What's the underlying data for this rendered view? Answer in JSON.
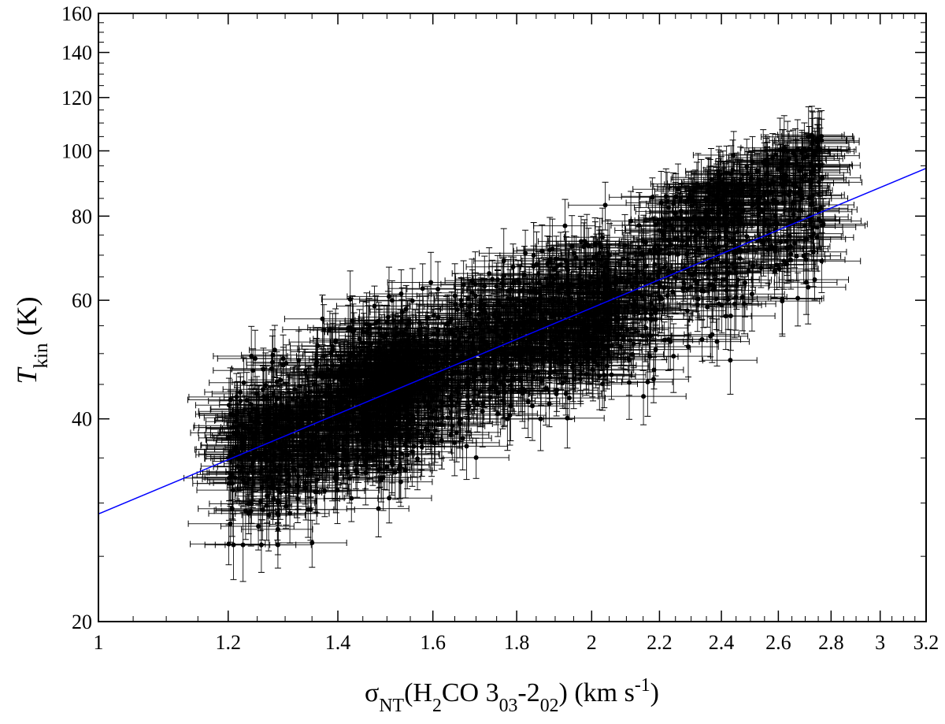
{
  "chart_data": {
    "type": "scatter",
    "title": "",
    "xlabel": {
      "parts": [
        {
          "text": "σ"
        },
        {
          "text": "NT",
          "shift": "sub"
        },
        {
          "text": "(H"
        },
        {
          "text": "2",
          "shift": "sub"
        },
        {
          "text": "CO 3"
        },
        {
          "text": "03",
          "shift": "sub"
        },
        {
          "text": "-2"
        },
        {
          "text": "02",
          "shift": "sub"
        },
        {
          "text": ") (km s"
        },
        {
          "text": "-1",
          "shift": "super"
        },
        {
          "text": ")"
        }
      ]
    },
    "ylabel": {
      "parts": [
        {
          "text": "T",
          "italic": true
        },
        {
          "text": "kin",
          "shift": "sub"
        },
        {
          "text": " (K)"
        }
      ]
    },
    "xscale": "log",
    "yscale": "log",
    "xlim": [
      1,
      3.2
    ],
    "ylim": [
      20,
      160
    ],
    "x_ticks": [
      1,
      1.2,
      1.4,
      1.6,
      1.8,
      2,
      2.2,
      2.4,
      2.6,
      2.8,
      3,
      3.2
    ],
    "x_tick_labels": [
      "1",
      "1.2",
      "1.4",
      "1.6",
      "1.8",
      "2",
      "2.2",
      "2.4",
      "2.6",
      "2.8",
      "3",
      "3.2"
    ],
    "y_ticks": [
      20,
      40,
      60,
      80,
      100,
      120,
      140,
      160
    ],
    "y_tick_labels": [
      "20",
      "40",
      "60",
      "80",
      "100",
      "120",
      "140",
      "160"
    ],
    "grid": false,
    "legend": "none",
    "fit_line": {
      "color": "#0000ff",
      "x": [
        1,
        3.2
      ],
      "y": [
        28.9,
        94.2
      ]
    },
    "scatter": {
      "marker_color": "#000000",
      "n_points": 2200,
      "note": "Dense cloud of data points with x and y error bars (sample of 2200 points approximating the observed distribution)"
    },
    "series": [
      {
        "x_range": [
          1.13,
          2.77
        ],
        "y_range": [
          26,
          106
        ],
        "xerr_typical": 0.05,
        "yerr_typical": 4
      }
    ]
  }
}
